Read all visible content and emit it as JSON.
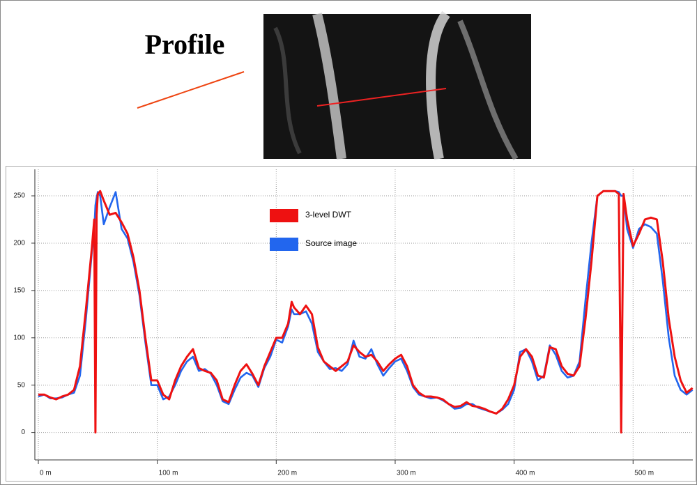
{
  "chart_data": {
    "type": "line",
    "annotation": "Profile",
    "x": [
      0,
      5,
      10,
      15,
      20,
      25,
      30,
      35,
      40,
      45,
      47,
      48,
      49,
      50,
      52,
      55,
      60,
      65,
      70,
      75,
      80,
      85,
      90,
      95,
      100,
      105,
      110,
      115,
      120,
      125,
      130,
      135,
      140,
      145,
      150,
      155,
      160,
      165,
      170,
      175,
      180,
      185,
      190,
      195,
      200,
      205,
      210,
      213,
      215,
      220,
      225,
      230,
      235,
      240,
      245,
      250,
      255,
      260,
      265,
      270,
      275,
      280,
      285,
      290,
      295,
      300,
      305,
      310,
      315,
      320,
      325,
      330,
      335,
      340,
      345,
      350,
      355,
      360,
      365,
      370,
      375,
      380,
      385,
      390,
      395,
      400,
      405,
      410,
      415,
      420,
      425,
      430,
      435,
      440,
      445,
      450,
      455,
      460,
      465,
      470,
      475,
      480,
      485,
      488,
      490,
      492,
      495,
      500,
      505,
      510,
      515,
      520,
      525,
      530,
      535,
      540,
      545,
      550
    ],
    "series": [
      {
        "name": "3-level DWT",
        "color": "#ee1111",
        "values": [
          40,
          40,
          37,
          35,
          38,
          40,
          45,
          70,
          130,
          195,
          225,
          0,
          230,
          252,
          255,
          245,
          230,
          232,
          222,
          210,
          185,
          150,
          100,
          55,
          55,
          40,
          35,
          55,
          70,
          80,
          88,
          68,
          65,
          63,
          55,
          35,
          32,
          50,
          65,
          72,
          62,
          50,
          70,
          85,
          100,
          100,
          115,
          138,
          132,
          125,
          134,
          125,
          90,
          75,
          70,
          65,
          70,
          75,
          92,
          85,
          80,
          82,
          75,
          65,
          72,
          78,
          82,
          70,
          50,
          42,
          38,
          38,
          37,
          35,
          30,
          27,
          28,
          32,
          28,
          27,
          25,
          22,
          20,
          25,
          35,
          50,
          80,
          88,
          80,
          60,
          58,
          90,
          88,
          70,
          62,
          60,
          70,
          120,
          180,
          250,
          255,
          255,
          255,
          252,
          0,
          252,
          225,
          197,
          210,
          225,
          227,
          225,
          180,
          120,
          80,
          55,
          42,
          47
        ]
      },
      {
        "name": "Source image",
        "color": "#2266ee",
        "values": [
          38,
          40,
          36,
          36,
          37,
          40,
          42,
          60,
          120,
          190,
          215,
          240,
          248,
          254,
          250,
          220,
          238,
          254,
          215,
          205,
          180,
          145,
          95,
          50,
          50,
          35,
          38,
          50,
          65,
          75,
          80,
          65,
          67,
          62,
          50,
          33,
          30,
          45,
          58,
          63,
          60,
          48,
          68,
          80,
          98,
          95,
          112,
          130,
          125,
          125,
          128,
          115,
          85,
          75,
          67,
          68,
          65,
          72,
          97,
          80,
          78,
          88,
          72,
          60,
          68,
          75,
          78,
          65,
          48,
          40,
          38,
          36,
          37,
          34,
          30,
          25,
          26,
          30,
          30,
          26,
          24,
          22,
          20,
          24,
          30,
          45,
          85,
          88,
          75,
          55,
          60,
          92,
          82,
          65,
          58,
          60,
          75,
          140,
          200,
          250,
          255,
          255,
          255,
          254,
          250,
          250,
          215,
          195,
          215,
          220,
          217,
          210,
          160,
          100,
          60,
          45,
          40,
          45
        ]
      }
    ],
    "xlim": [
      0,
      550
    ],
    "ylim": [
      -29,
      278
    ],
    "xticks": [
      {
        "value": 0,
        "label": "0 m"
      },
      {
        "value": 100,
        "label": "100 m"
      },
      {
        "value": 200,
        "label": "200 m"
      },
      {
        "value": 300,
        "label": "300 m"
      },
      {
        "value": 400,
        "label": "400 m"
      },
      {
        "value": 500,
        "label": "500 m"
      }
    ],
    "yticks": [
      0,
      50,
      100,
      150,
      200,
      250
    ],
    "grid": true,
    "legend": "top"
  }
}
